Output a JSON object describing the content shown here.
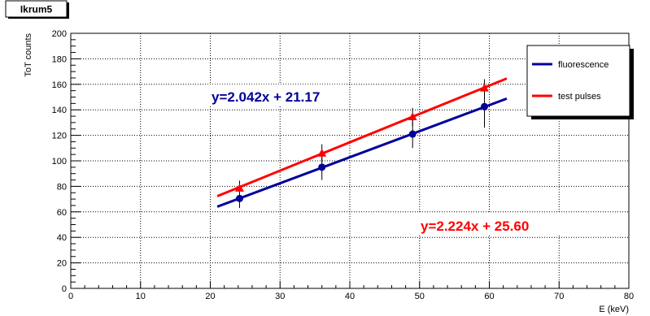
{
  "chart_data": {
    "type": "scatter",
    "title": "Ikrum5",
    "xlabel": "E (keV)",
    "ylabel": "ToT counts",
    "xlim": [
      0,
      80
    ],
    "ylim": [
      0,
      200
    ],
    "x_ticks": [
      "0",
      "10",
      "20",
      "30",
      "40",
      "50",
      "60",
      "70",
      "80"
    ],
    "y_ticks": [
      "0",
      "20",
      "40",
      "60",
      "80",
      "100",
      "120",
      "140",
      "160",
      "180",
      "200"
    ],
    "grid": true,
    "legend_position": "top-right",
    "series": [
      {
        "name": "fluorescence",
        "color": "#000099",
        "marker": "circle",
        "x": [
          24.2,
          36.0,
          49.0,
          59.3
        ],
        "y": [
          70.5,
          95.0,
          121.0,
          142.5
        ],
        "yerr": [
          7.5,
          10.0,
          11.0,
          16.5
        ],
        "fit": {
          "slope": 2.042,
          "intercept": 21.17,
          "x_range": [
            21,
            62.5
          ]
        }
      },
      {
        "name": "test pulses",
        "color": "#ff0000",
        "marker": "triangle",
        "x": [
          24.2,
          36.0,
          49.0,
          59.3
        ],
        "y": [
          78.5,
          106.0,
          134.5,
          157.0
        ],
        "yerr": [
          6.0,
          7.0,
          7.0,
          7.0
        ],
        "fit": {
          "slope": 2.224,
          "intercept": 25.6,
          "x_range": [
            21,
            62.5
          ]
        }
      }
    ],
    "annotations": [
      {
        "text": "y=2.042x + 21.17",
        "color": "#000099"
      },
      {
        "text": "y=2.224x + 25.60",
        "color": "#ff0000"
      }
    ]
  }
}
